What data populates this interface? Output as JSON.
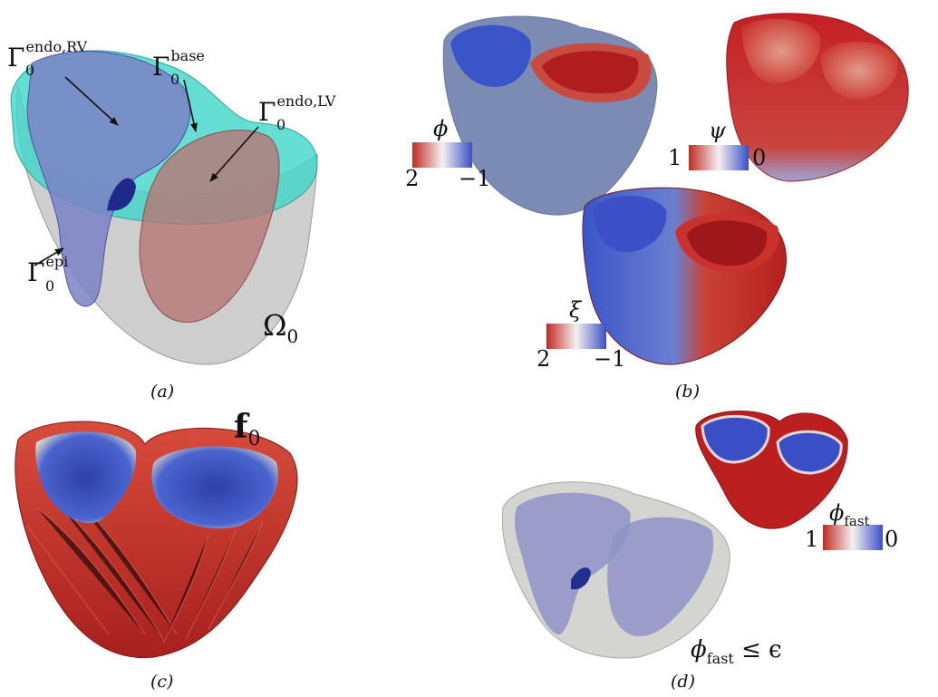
{
  "panels": {
    "a": {
      "caption": "(a)",
      "labels": {
        "endo_rv_base": "Γ",
        "endo_rv_sup": "endo,RV",
        "endo_rv_sub": "0",
        "base_base": "Γ",
        "base_sup": "base",
        "base_sub": "0",
        "endo_lv_base": "Γ",
        "endo_lv_sup": "endo,LV",
        "endo_lv_sub": "0",
        "epi_base": "Γ",
        "epi_sup": "epi",
        "epi_sub": "0",
        "omega_base": "Ω",
        "omega_sub": "0"
      }
    },
    "b": {
      "caption": "(b)",
      "phi": {
        "symbol": "ϕ",
        "left": "2",
        "right": "−1"
      },
      "psi": {
        "symbol": "ψ",
        "left": "1",
        "right": "0"
      },
      "xi": {
        "symbol": "ξ",
        "left": "2",
        "right": "−1"
      }
    },
    "c": {
      "caption": "(c)",
      "label_base": "f",
      "label_sub": "0"
    },
    "d": {
      "caption": "(d)",
      "phi_fast": {
        "symbol": "ϕ",
        "sub": "fast",
        "left": "1",
        "right": "0"
      },
      "condition": {
        "symbol": "ϕ",
        "sub": "fast",
        "rest": " ≤ ϵ"
      }
    }
  },
  "colors": {
    "red": "#c0201f",
    "blue": "#3a55c8",
    "teal": "#3fd6c8",
    "grey": "#b8b8b8",
    "lilac": "#7a82c6"
  }
}
